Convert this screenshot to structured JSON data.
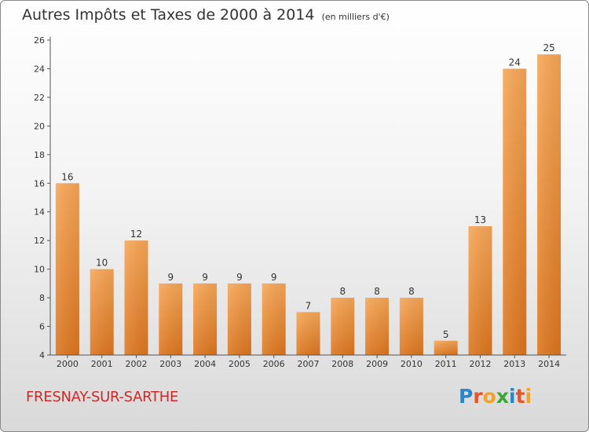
{
  "chart_data": {
    "type": "bar",
    "title": "Autres Impôts et Taxes de 2000 à 2014",
    "subtitle": "(en milliers d'€)",
    "categories": [
      "2000",
      "2001",
      "2002",
      "2003",
      "2004",
      "2005",
      "2006",
      "2007",
      "2008",
      "2009",
      "2010",
      "2011",
      "2012",
      "2013",
      "2014"
    ],
    "values": [
      16,
      10,
      12,
      9,
      9,
      9,
      9,
      7,
      8,
      8,
      8,
      5,
      13,
      24,
      25
    ],
    "ylim": [
      4,
      26
    ],
    "yticks": [
      4,
      6,
      8,
      10,
      12,
      14,
      16,
      18,
      20,
      22,
      24,
      26
    ],
    "grid": false,
    "bar_color": "#f0923a"
  },
  "footer": {
    "commune": "FRESNAY-SUR-SARTHE",
    "logo_letters": [
      {
        "ch": "P",
        "color": "#2a86c8"
      },
      {
        "ch": "r",
        "color": "#e8542a"
      },
      {
        "ch": "o",
        "color": "#f2a12c"
      },
      {
        "ch": "x",
        "color": "#3aa63a"
      },
      {
        "ch": "i",
        "color": "#2a86c8"
      },
      {
        "ch": "t",
        "color": "#e8542a"
      },
      {
        "ch": "i",
        "color": "#f2a12c"
      }
    ]
  }
}
